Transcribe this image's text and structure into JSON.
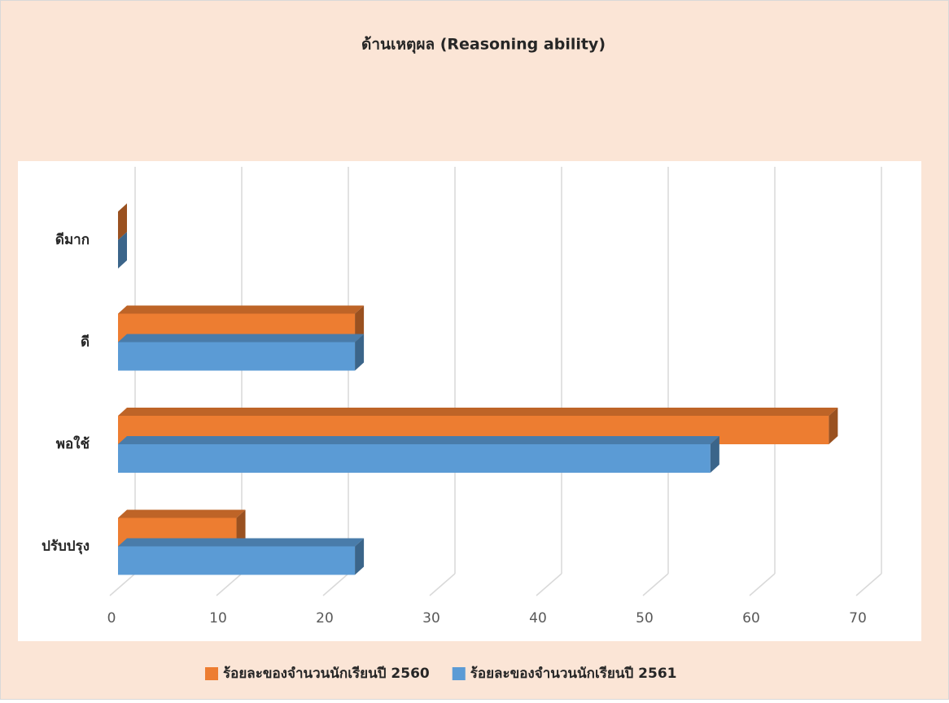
{
  "chart_data": {
    "type": "bar3d_horizontal",
    "title": "ด้านเหตุผล (Reasoning ability)",
    "categories": [
      "ดีมาก",
      "ดี",
      "พอใช้",
      "ปรับปรุง"
    ],
    "series": [
      {
        "name": "ร้อยละของจำนวนนักเรียนปี 2560",
        "color": "#ed7d31",
        "values": [
          0,
          22.22,
          66.67,
          11.11
        ]
      },
      {
        "name": "ร้อยละของจำนวนนักเรียนปี 2561",
        "color": "#5b9bd5",
        "values": [
          0,
          22.22,
          55.56,
          22.22
        ]
      }
    ],
    "xlim": [
      0,
      70
    ],
    "xticks": [
      0,
      10,
      20,
      30,
      40,
      50,
      60,
      70
    ],
    "grid": true,
    "legend": "bottom"
  }
}
